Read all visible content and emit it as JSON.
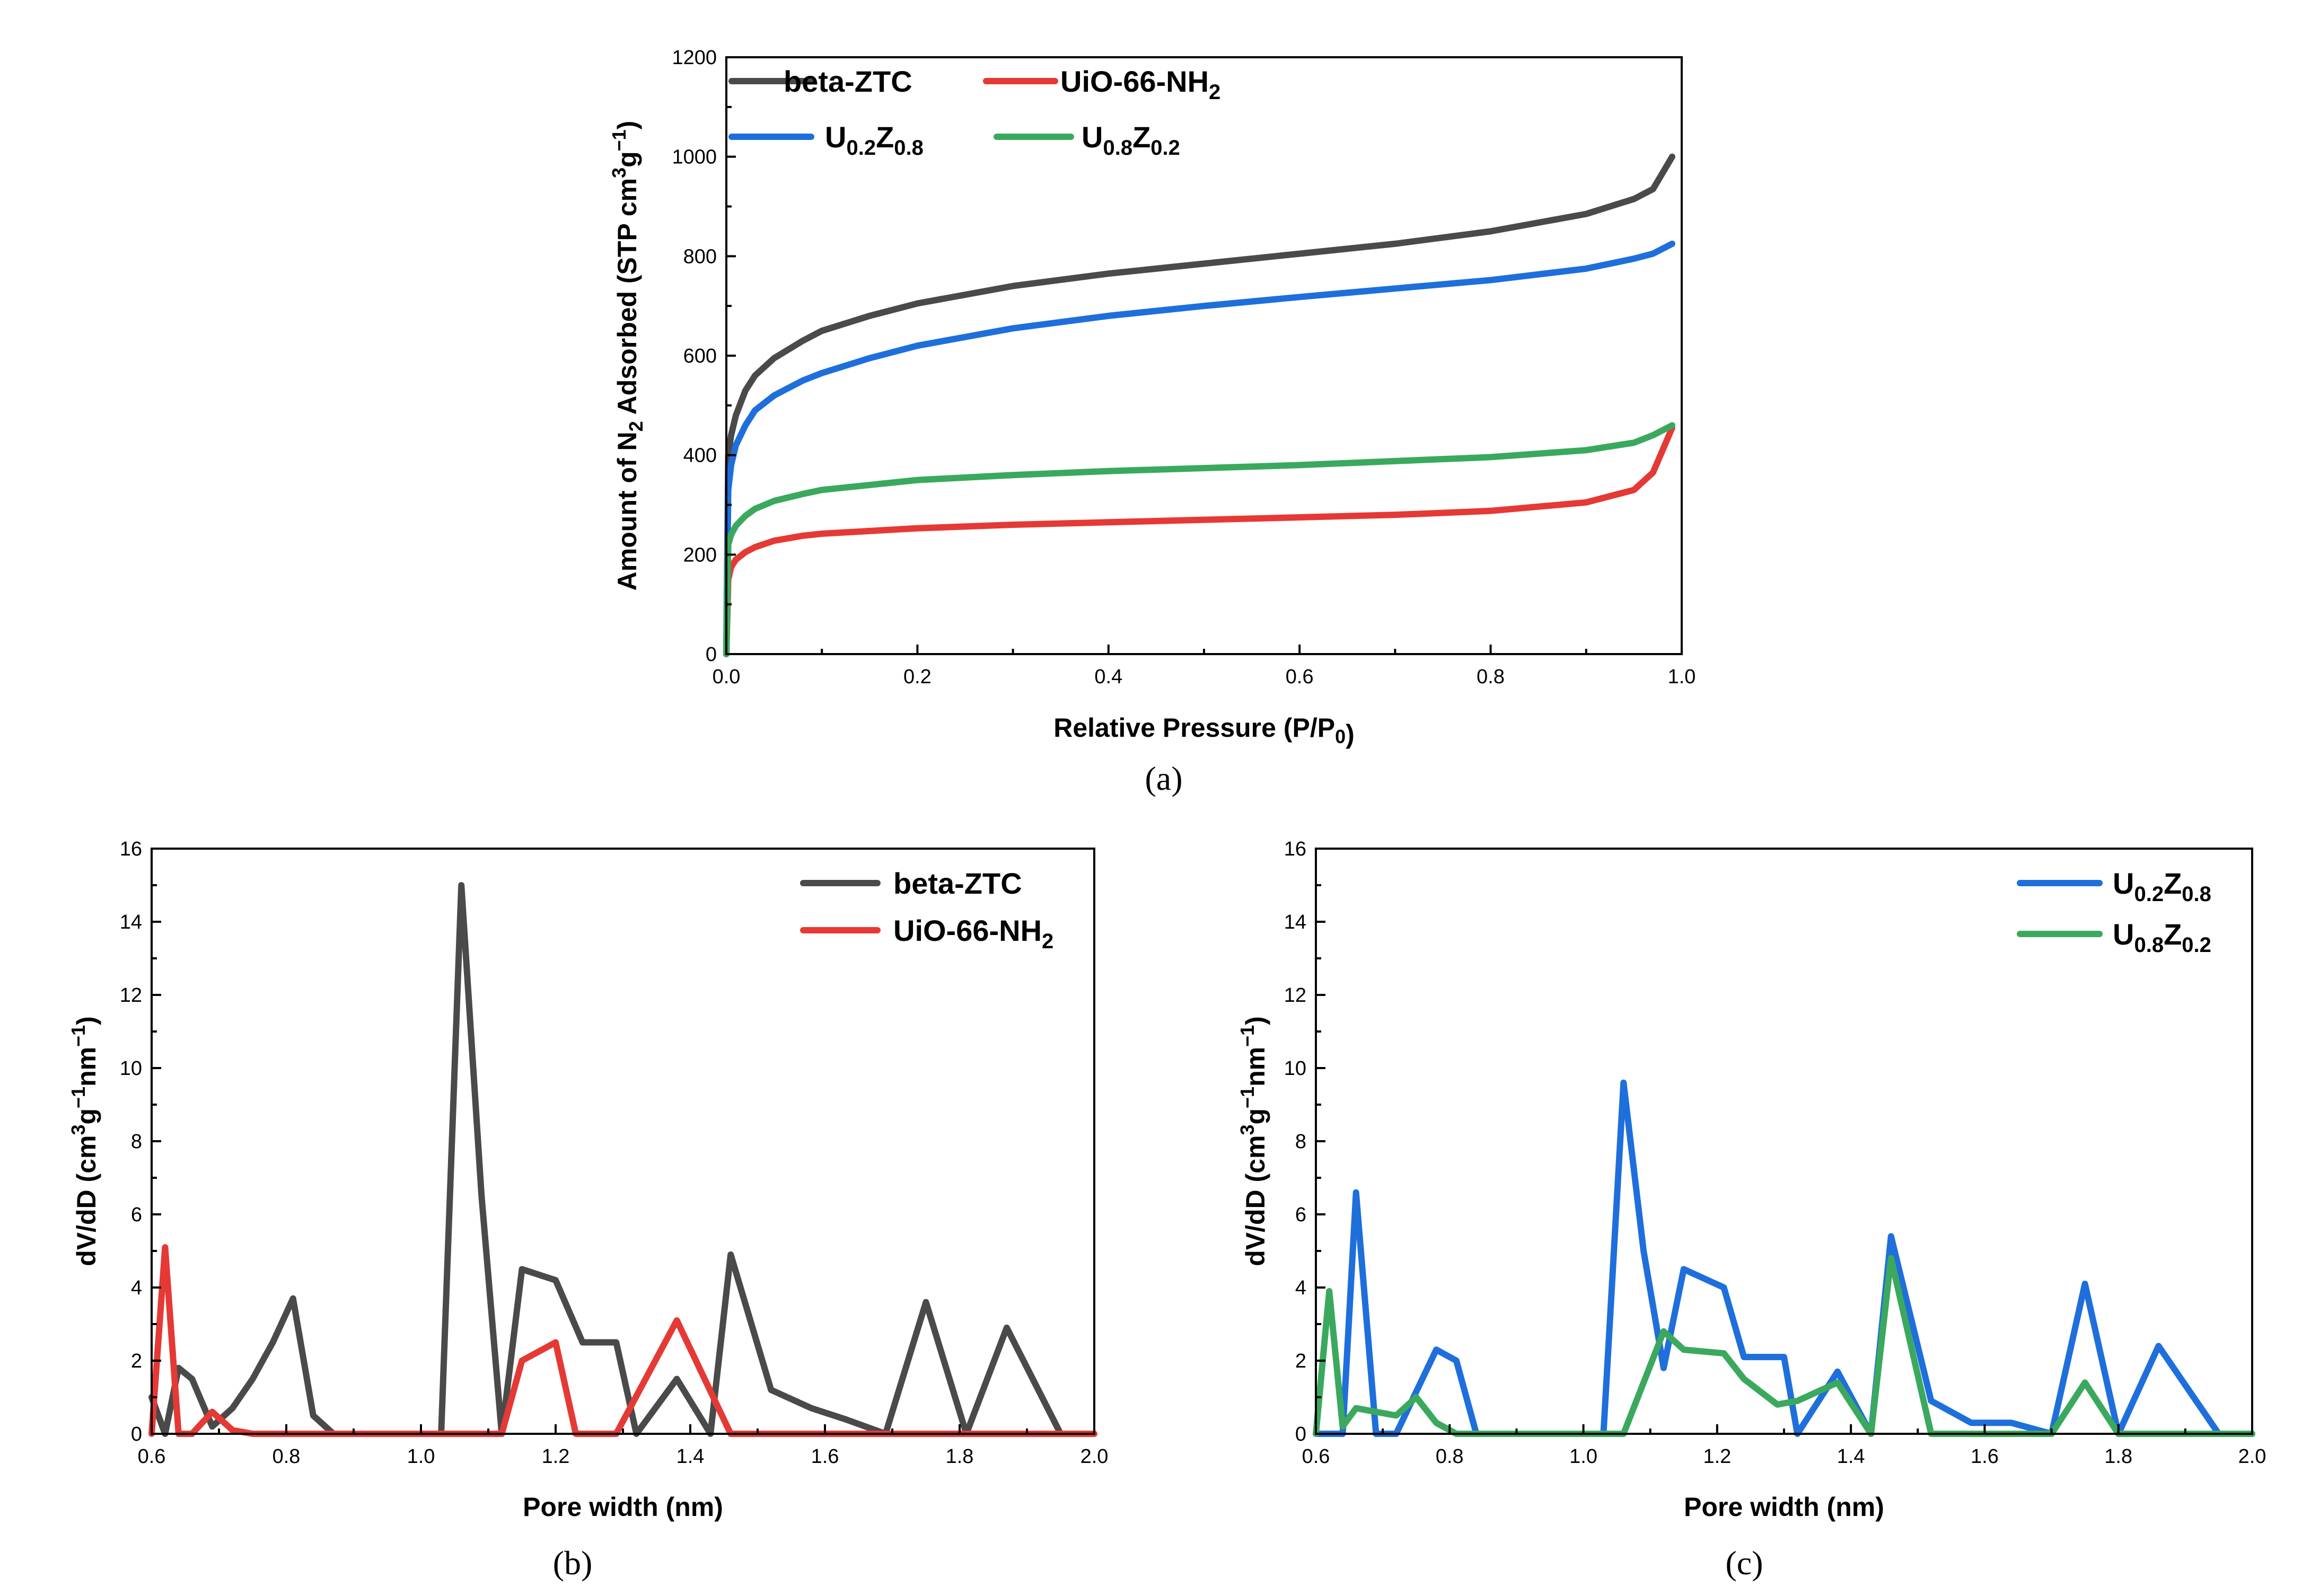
{
  "chart_data": [
    {
      "type": "line",
      "panel_label": "(a)",
      "xlabel": "Relative Pressure (P/P0)",
      "ylabel": "Amount of N2 Adsorbed (STP cm3g−1)",
      "xlim": [
        0.0,
        1.0
      ],
      "ylim": [
        0,
        1200
      ],
      "xticks": [
        0.0,
        0.2,
        0.4,
        0.6,
        0.8,
        1.0
      ],
      "yticks": [
        0,
        200,
        400,
        600,
        800,
        1000,
        1200
      ],
      "xtick_labels": [
        "0.0",
        "0.2",
        "0.4",
        "0.6",
        "0.8",
        "1.0"
      ],
      "ytick_labels": [
        "0",
        "200",
        "400",
        "600",
        "800",
        "1000",
        "1200"
      ],
      "legend_position": "top-left, two columns",
      "series": [
        {
          "name": "beta-ZTC",
          "color": "#4a4a4a",
          "x": [
            0,
            0.002,
            0.005,
            0.01,
            0.02,
            0.03,
            0.05,
            0.08,
            0.1,
            0.15,
            0.2,
            0.3,
            0.4,
            0.5,
            0.6,
            0.7,
            0.8,
            0.9,
            0.95,
            0.97,
            0.99
          ],
          "values": [
            0,
            400,
            440,
            480,
            530,
            560,
            595,
            630,
            650,
            680,
            705,
            740,
            765,
            785,
            805,
            825,
            850,
            885,
            915,
            935,
            1000
          ]
        },
        {
          "name": "UiO-66-NH2",
          "color": "#e53935",
          "x": [
            0,
            0.002,
            0.005,
            0.01,
            0.02,
            0.03,
            0.05,
            0.08,
            0.1,
            0.2,
            0.3,
            0.4,
            0.5,
            0.6,
            0.7,
            0.8,
            0.9,
            0.95,
            0.97,
            0.99
          ],
          "values": [
            0,
            150,
            175,
            190,
            205,
            215,
            228,
            238,
            242,
            253,
            260,
            265,
            270,
            275,
            280,
            288,
            305,
            330,
            365,
            455
          ]
        },
        {
          "name": "U0.2Z0.8",
          "color": "#1e6fdc",
          "x": [
            0,
            0.002,
            0.005,
            0.01,
            0.02,
            0.03,
            0.05,
            0.08,
            0.1,
            0.15,
            0.2,
            0.3,
            0.4,
            0.5,
            0.6,
            0.7,
            0.8,
            0.9,
            0.95,
            0.97,
            0.99
          ],
          "values": [
            0,
            330,
            380,
            420,
            460,
            490,
            520,
            550,
            565,
            595,
            620,
            655,
            680,
            700,
            718,
            735,
            752,
            775,
            795,
            805,
            825
          ]
        },
        {
          "name": "U0.8Z0.2",
          "color": "#3aa95e",
          "x": [
            0,
            0.002,
            0.005,
            0.01,
            0.02,
            0.03,
            0.05,
            0.08,
            0.1,
            0.2,
            0.3,
            0.4,
            0.5,
            0.6,
            0.7,
            0.8,
            0.9,
            0.95,
            0.97,
            0.99
          ],
          "values": [
            0,
            220,
            240,
            258,
            278,
            292,
            308,
            322,
            330,
            350,
            360,
            368,
            374,
            380,
            388,
            396,
            410,
            425,
            440,
            460
          ]
        }
      ]
    },
    {
      "type": "line",
      "panel_label": "(b)",
      "xlabel": "Pore width (nm)",
      "ylabel": "dV/dD (cm3g−1nm−1)",
      "xlim": [
        0.6,
        2.0
      ],
      "ylim": [
        0,
        16
      ],
      "xticks": [
        0.6,
        0.8,
        1.0,
        1.2,
        1.4,
        1.6,
        1.8,
        2.0
      ],
      "yticks": [
        0,
        2,
        4,
        6,
        8,
        10,
        12,
        14,
        16
      ],
      "xtick_labels": [
        "0.6",
        "0.8",
        "1.0",
        "1.2",
        "1.4",
        "1.6",
        "1.8",
        "2.0"
      ],
      "ytick_labels": [
        "0",
        "2",
        "4",
        "6",
        "8",
        "10",
        "12",
        "14",
        "16"
      ],
      "legend_position": "top-right",
      "series": [
        {
          "name": "beta-ZTC",
          "color": "#4a4a4a",
          "x": [
            0.6,
            0.62,
            0.64,
            0.66,
            0.69,
            0.72,
            0.75,
            0.78,
            0.81,
            0.84,
            0.87,
            1.03,
            1.06,
            1.09,
            1.12,
            1.15,
            1.2,
            1.24,
            1.29,
            1.32,
            1.38,
            1.43,
            1.46,
            1.52,
            1.58,
            1.63,
            1.69,
            1.75,
            1.81,
            1.87,
            1.95
          ],
          "values": [
            1.0,
            0.0,
            1.8,
            1.5,
            0.2,
            0.7,
            1.5,
            2.5,
            3.7,
            0.5,
            0.0,
            0.0,
            15.0,
            6.5,
            0.0,
            4.5,
            4.2,
            2.5,
            2.5,
            0.0,
            1.5,
            0.0,
            4.9,
            1.2,
            0.7,
            0.4,
            0.0,
            3.6,
            0.0,
            2.9,
            0.0
          ]
        },
        {
          "name": "UiO-66-NH2",
          "color": "#e53935",
          "x": [
            0.6,
            0.62,
            0.64,
            0.66,
            0.69,
            0.72,
            0.75,
            1.12,
            1.15,
            1.2,
            1.23,
            1.29,
            1.38,
            1.46,
            2.0
          ],
          "values": [
            0.0,
            5.1,
            0.0,
            0.0,
            0.6,
            0.1,
            0.0,
            0.0,
            2.0,
            2.5,
            0.0,
            0.0,
            3.1,
            0.0,
            0.0
          ]
        }
      ]
    },
    {
      "type": "line",
      "panel_label": "(c)",
      "xlabel": "Pore width (nm)",
      "ylabel": "dV/dD (cm3g−1nm−1)",
      "xlim": [
        0.6,
        2.0
      ],
      "ylim": [
        0,
        16
      ],
      "xticks": [
        0.6,
        0.8,
        1.0,
        1.2,
        1.4,
        1.6,
        1.8,
        2.0
      ],
      "yticks": [
        0,
        2,
        4,
        6,
        8,
        10,
        12,
        14,
        16
      ],
      "xtick_labels": [
        "0.6",
        "0.8",
        "1.0",
        "1.2",
        "1.4",
        "1.6",
        "1.8",
        "2.0"
      ],
      "ytick_labels": [
        "0",
        "2",
        "4",
        "6",
        "8",
        "10",
        "12",
        "14",
        "16"
      ],
      "legend_position": "top-right",
      "series": [
        {
          "name": "U0.2Z0.8",
          "color": "#1e6fdc",
          "x": [
            0.6,
            0.64,
            0.66,
            0.69,
            0.72,
            0.78,
            0.81,
            0.84,
            1.03,
            1.06,
            1.09,
            1.12,
            1.15,
            1.21,
            1.24,
            1.3,
            1.32,
            1.38,
            1.43,
            1.46,
            1.52,
            1.58,
            1.64,
            1.7,
            1.75,
            1.8,
            1.86,
            1.95,
            2.0
          ],
          "values": [
            0.0,
            0.0,
            6.6,
            0.0,
            0.0,
            2.3,
            2.0,
            0.0,
            0.0,
            9.6,
            5.0,
            1.8,
            4.5,
            4.0,
            2.1,
            2.1,
            0.0,
            1.7,
            0.0,
            5.4,
            0.9,
            0.3,
            0.3,
            0.0,
            4.1,
            0.0,
            2.4,
            0.0,
            0.0
          ]
        },
        {
          "name": "U0.8Z0.2",
          "color": "#3aa95e",
          "x": [
            0.6,
            0.62,
            0.64,
            0.66,
            0.69,
            0.72,
            0.75,
            0.78,
            0.81,
            1.06,
            1.12,
            1.15,
            1.21,
            1.24,
            1.29,
            1.32,
            1.38,
            1.43,
            1.46,
            1.52,
            1.7,
            1.75,
            1.8,
            2.0
          ],
          "values": [
            0.0,
            3.9,
            0.2,
            0.7,
            0.6,
            0.5,
            1.0,
            0.3,
            0.0,
            0.0,
            2.8,
            2.3,
            2.2,
            1.5,
            0.8,
            0.9,
            1.4,
            0.0,
            4.8,
            0.0,
            0.0,
            1.4,
            0.0,
            0.0
          ]
        }
      ]
    }
  ]
}
